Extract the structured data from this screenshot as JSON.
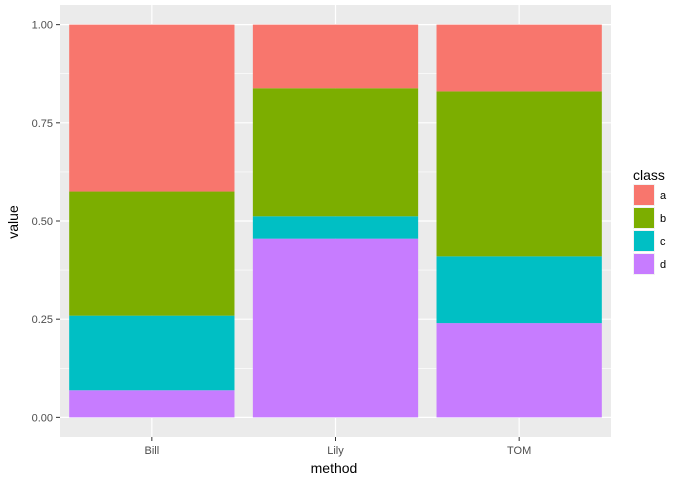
{
  "chart_data": {
    "type": "bar",
    "stacked": true,
    "categories": [
      "Bill",
      "Lily",
      "TOM"
    ],
    "series": [
      {
        "name": "a",
        "color": "#F8766D",
        "values": [
          0.425,
          0.162,
          0.17
        ]
      },
      {
        "name": "b",
        "color": "#7CAE00",
        "values": [
          0.316,
          0.326,
          0.42
        ]
      },
      {
        "name": "c",
        "color": "#00BFC4",
        "values": [
          0.19,
          0.057,
          0.17
        ]
      },
      {
        "name": "d",
        "color": "#C77CFF",
        "values": [
          0.069,
          0.455,
          0.24
        ]
      }
    ],
    "xlabel": "method",
    "ylabel": "value",
    "ylim": [
      -0.05,
      1.05
    ],
    "yticks": [
      0.0,
      0.25,
      0.5,
      0.75,
      1.0
    ],
    "ytick_labels": [
      "0.00",
      "0.25",
      "0.50",
      "0.75",
      "1.00"
    ],
    "grid": true,
    "legend": {
      "title": "class",
      "position": "right"
    },
    "panel_background": "#EBEBEB",
    "grid_color": "#FFFFFF"
  }
}
